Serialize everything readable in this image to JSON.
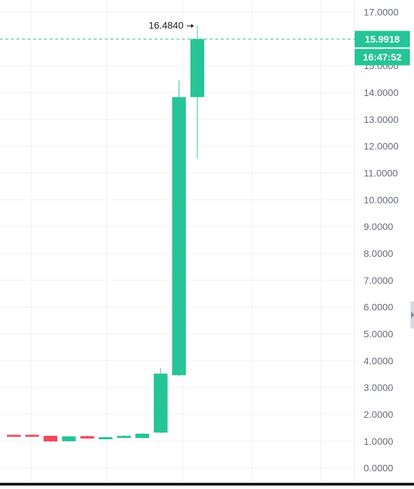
{
  "chart_data": {
    "type": "candlestick",
    "y_axis": {
      "ticks": [
        "17.0000",
        "16.0000",
        "15.0000",
        "14.0000",
        "13.0000",
        "12.0000",
        "11.0000",
        "10.0000",
        "9.0000",
        "8.0000",
        "7.0000",
        "6.0000",
        "5.0000",
        "4.0000",
        "3.0000",
        "2.0000",
        "1.0000",
        "0.0000"
      ],
      "tick_values": [
        17,
        16,
        15,
        14,
        13,
        12,
        11,
        10,
        9,
        8,
        7,
        6,
        5,
        4,
        3,
        2,
        1,
        0
      ],
      "ylim": [
        -0.55,
        17.45
      ],
      "position": "right"
    },
    "candles": [
      {
        "open": 1.24,
        "high": 1.26,
        "low": 1.21,
        "close": 1.23
      },
      {
        "open": 1.24,
        "high": 1.26,
        "low": 1.18,
        "close": 1.2
      },
      {
        "open": 1.2,
        "high": 1.22,
        "low": 0.97,
        "close": 0.99
      },
      {
        "open": 1.0,
        "high": 1.2,
        "low": 0.97,
        "close": 1.18
      },
      {
        "open": 1.19,
        "high": 1.21,
        "low": 1.09,
        "close": 1.1
      },
      {
        "open": 1.11,
        "high": 1.18,
        "low": 1.09,
        "close": 1.15
      },
      {
        "open": 1.15,
        "high": 1.23,
        "low": 1.13,
        "close": 1.2
      },
      {
        "open": 1.12,
        "high": 1.31,
        "low": 1.1,
        "close": 1.28
      },
      {
        "open": 1.32,
        "high": 3.72,
        "low": 1.3,
        "close": 3.52
      },
      {
        "open": 3.46,
        "high": 14.45,
        "low": 3.44,
        "close": 13.83
      },
      {
        "open": 13.83,
        "high": 16.484,
        "low": 11.55,
        "close": 15.9918
      }
    ],
    "high_label": "16.4840",
    "last_price_label": "15.9918",
    "countdown_label": "16:47:52",
    "grid": true
  },
  "colors": {
    "up": "#26c496",
    "down": "#ef4b5b",
    "grid": "#f0f1f3",
    "axis_text": "#666b75",
    "price_line": "#26c496"
  }
}
